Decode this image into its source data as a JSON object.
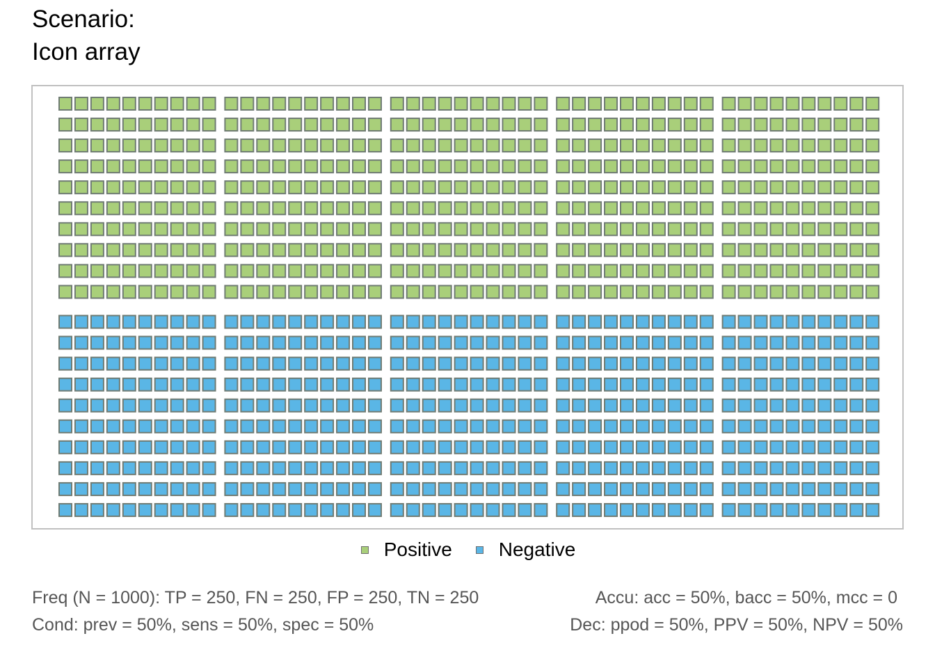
{
  "title": {
    "line1": "Scenario:",
    "line2": "Icon array"
  },
  "colors": {
    "positive": "#a9cf7a",
    "negative": "#5ab6e6",
    "icon_border": "#6f7b73",
    "frame": "#c0c0c0",
    "footer_text": "#555555"
  },
  "chart_data": {
    "type": "icon_array",
    "N": 1000,
    "layout": {
      "rows": 20,
      "columns": 50,
      "column_blocks": 5,
      "row_blocks": 2
    },
    "series": [
      {
        "name": "Positive",
        "count": 500,
        "color": "#a9cf7a"
      },
      {
        "name": "Negative",
        "count": 500,
        "color": "#5ab6e6"
      }
    ]
  },
  "legend": {
    "positive_label": "Positive",
    "negative_label": "Negative"
  },
  "footer": {
    "freq": "Freq (N = 1000):  TP = 250, FN = 250, FP = 250, TN = 250",
    "cond": "Cond:  prev = 50%, sens = 50%, spec = 50%",
    "accu": "Accu:  acc = 50%, bacc = 50%, mcc = 0",
    "dec": "Dec:  ppod = 50%, PPV = 50%, NPV = 50%"
  }
}
